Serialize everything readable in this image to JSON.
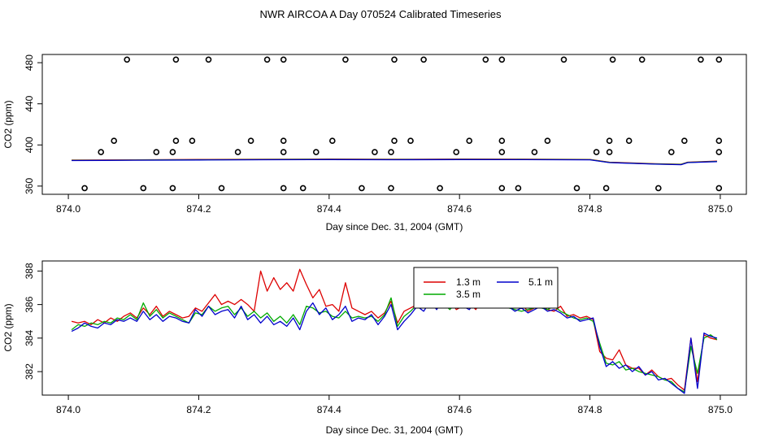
{
  "title": "NWR AIRCOA A  Day 070524  Calibrated Timeseries",
  "colors": {
    "s13": "#dd0000",
    "s35": "#00aa00",
    "s51": "#0000cc"
  },
  "chart_data": [
    {
      "type": "line+scatter",
      "xlabel": "Day since Dec. 31, 2004 (GMT)",
      "ylabel": "CO2 (ppm)",
      "xlim": [
        873.96,
        875.04
      ],
      "ylim": [
        352,
        488
      ],
      "xticks": [
        "874.0",
        "874.2",
        "874.4",
        "874.6",
        "874.8",
        "875.0"
      ],
      "yticks": [
        "360",
        "400",
        "440",
        "480"
      ],
      "circle_levels": [
        358,
        393,
        404,
        483
      ],
      "circles": {
        "x_358": [
          874.025,
          874.115,
          874.16,
          874.235,
          874.33,
          874.36,
          874.45,
          874.495,
          874.57,
          874.665,
          874.69,
          874.78,
          874.825,
          874.905,
          874.998
        ],
        "x_393": [
          874.05,
          874.135,
          874.16,
          874.26,
          874.33,
          874.38,
          874.47,
          874.495,
          874.595,
          874.665,
          874.715,
          874.81,
          874.83,
          874.925,
          874.998
        ],
        "x_404": [
          874.07,
          874.165,
          874.19,
          874.28,
          874.33,
          874.405,
          874.5,
          874.525,
          874.615,
          874.665,
          874.735,
          874.83,
          874.86,
          874.945,
          874.998
        ],
        "x_483": [
          874.09,
          874.165,
          874.215,
          874.305,
          874.33,
          874.425,
          874.5,
          874.545,
          874.64,
          874.665,
          874.76,
          874.835,
          874.88,
          874.97,
          874.998
        ]
      },
      "lines": {
        "x": [
          874.005,
          874.1,
          874.2,
          874.3,
          874.4,
          874.5,
          874.6,
          874.7,
          874.8,
          874.83,
          874.9,
          874.94,
          874.95,
          874.995
        ],
        "y": [
          385,
          385.3,
          385.6,
          385.8,
          386,
          385.8,
          386,
          385.9,
          385.7,
          383,
          381.5,
          381,
          383,
          384
        ]
      }
    },
    {
      "type": "line",
      "xlabel": "Day since Dec. 31, 2004 (GMT)",
      "ylabel": "CO2 (ppm)",
      "xlim": [
        873.96,
        875.04
      ],
      "ylim": [
        380.6,
        388.6
      ],
      "xticks": [
        "874.0",
        "874.2",
        "874.4",
        "874.6",
        "874.8",
        "875.0"
      ],
      "yticks": [
        "382",
        "384",
        "386",
        "388"
      ],
      "legend": {
        "placement": "top-center",
        "entries": [
          "1.3 m",
          "5.1 m",
          "3.5 m"
        ]
      },
      "x": [
        874.005,
        874.015,
        874.025,
        874.035,
        874.045,
        874.055,
        874.065,
        874.075,
        874.085,
        874.095,
        874.105,
        874.115,
        874.125,
        874.135,
        874.145,
        874.155,
        874.165,
        874.175,
        874.185,
        874.195,
        874.205,
        874.215,
        874.225,
        874.235,
        874.245,
        874.255,
        874.265,
        874.275,
        874.285,
        874.295,
        874.305,
        874.315,
        874.325,
        874.335,
        874.345,
        874.355,
        874.365,
        874.375,
        874.385,
        874.395,
        874.405,
        874.415,
        874.425,
        874.435,
        874.445,
        874.455,
        874.465,
        874.475,
        874.485,
        874.495,
        874.505,
        874.515,
        874.525,
        874.535,
        874.545,
        874.555,
        874.565,
        874.575,
        874.585,
        874.595,
        874.605,
        874.615,
        874.625,
        874.635,
        874.645,
        874.655,
        874.665,
        874.675,
        874.685,
        874.695,
        874.705,
        874.715,
        874.725,
        874.735,
        874.745,
        874.755,
        874.765,
        874.775,
        874.785,
        874.795,
        874.805,
        874.815,
        874.825,
        874.835,
        874.845,
        874.855,
        874.865,
        874.875,
        874.885,
        874.895,
        874.905,
        874.915,
        874.925,
        874.935,
        874.945,
        874.955,
        874.965,
        874.975,
        874.985,
        874.995
      ],
      "series": [
        {
          "name": "1.3 m",
          "values": [
            385.0,
            384.9,
            385.0,
            384.8,
            385.1,
            384.9,
            385.2,
            385.0,
            385.3,
            385.5,
            385.2,
            385.8,
            385.4,
            385.9,
            385.3,
            385.6,
            385.4,
            385.2,
            385.3,
            385.8,
            385.6,
            386.1,
            386.6,
            386.0,
            386.2,
            386.0,
            386.3,
            386.0,
            385.6,
            388.0,
            386.8,
            387.6,
            386.9,
            387.3,
            386.8,
            388.1,
            387.2,
            386.4,
            386.9,
            385.9,
            386.0,
            385.6,
            387.3,
            385.8,
            385.6,
            385.4,
            385.6,
            385.2,
            385.5,
            386.2,
            384.9,
            385.6,
            385.8,
            386.0,
            386.3,
            386.1,
            386.4,
            385.9,
            386.3,
            385.7,
            385.9,
            386.1,
            385.7,
            386.3,
            386.6,
            386.4,
            386.2,
            386.1,
            385.8,
            386.0,
            385.6,
            385.8,
            385.9,
            385.7,
            385.6,
            385.9,
            385.3,
            385.4,
            385.2,
            385.3,
            385.1,
            383.2,
            382.8,
            382.7,
            383.3,
            382.4,
            382.2,
            382.2,
            381.8,
            382.1,
            381.7,
            381.5,
            381.6,
            381.2,
            380.9,
            384.0,
            381.4,
            384.2,
            384.0,
            383.9
          ]
        },
        {
          "name": "5.1 m",
          "values": [
            384.4,
            384.6,
            384.9,
            384.7,
            384.6,
            384.9,
            384.8,
            385.1,
            385.0,
            385.2,
            385.0,
            385.6,
            385.1,
            385.4,
            385.0,
            385.3,
            385.2,
            385.0,
            384.9,
            385.7,
            385.3,
            385.9,
            385.4,
            385.6,
            385.7,
            385.2,
            385.9,
            385.1,
            385.4,
            384.9,
            385.3,
            384.8,
            385.0,
            384.7,
            385.2,
            384.5,
            385.6,
            386.1,
            385.4,
            385.8,
            385.1,
            385.4,
            385.9,
            385.0,
            385.2,
            385.1,
            385.4,
            384.8,
            385.3,
            386.0,
            384.5,
            385.0,
            385.4,
            385.9,
            385.6,
            386.2,
            385.7,
            386.3,
            385.8,
            386.0,
            385.9,
            385.7,
            386.2,
            385.8,
            386.5,
            386.3,
            386.0,
            385.9,
            385.6,
            385.8,
            385.5,
            385.7,
            385.9,
            385.6,
            385.7,
            385.5,
            385.2,
            385.3,
            385.0,
            385.1,
            385.2,
            383.5,
            382.3,
            382.6,
            382.2,
            382.4,
            382.0,
            382.3,
            381.8,
            382.0,
            381.5,
            381.6,
            381.3,
            381.0,
            380.7,
            384.0,
            381.0,
            384.3,
            384.1,
            384.0
          ]
        },
        {
          "name": "3.5 m",
          "values": [
            384.5,
            384.8,
            384.7,
            384.9,
            384.8,
            385.0,
            384.9,
            385.2,
            385.1,
            385.4,
            385.1,
            386.1,
            385.3,
            385.7,
            385.2,
            385.5,
            385.3,
            385.1,
            384.9,
            385.5,
            385.4,
            385.9,
            385.6,
            385.8,
            385.9,
            385.4,
            385.8,
            385.3,
            385.6,
            385.2,
            385.5,
            385.0,
            385.3,
            384.9,
            385.4,
            384.8,
            385.9,
            385.8,
            385.5,
            385.6,
            385.3,
            385.2,
            385.6,
            385.2,
            385.3,
            385.2,
            385.3,
            385.0,
            385.4,
            386.4,
            384.7,
            385.3,
            385.6,
            386.0,
            385.8,
            386.4,
            385.9,
            386.1,
            385.7,
            386.1,
            385.8,
            385.9,
            386.0,
            385.9,
            386.6,
            386.2,
            386.1,
            385.8,
            385.7,
            385.6,
            385.7,
            385.8,
            385.8,
            385.7,
            385.9,
            385.6,
            385.4,
            385.2,
            385.1,
            385.2,
            385.0,
            383.7,
            382.5,
            382.4,
            382.6,
            382.1,
            382.2,
            382.0,
            381.9,
            381.8,
            381.7,
            381.5,
            381.4,
            381.0,
            380.8,
            383.5,
            381.9,
            384.0,
            384.2,
            383.9
          ]
        }
      ]
    }
  ]
}
